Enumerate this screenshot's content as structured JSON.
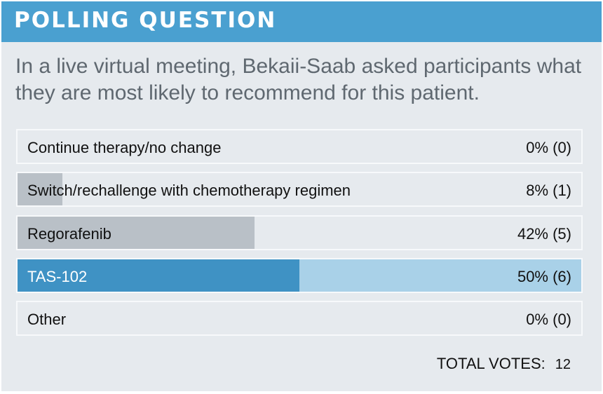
{
  "header": {
    "title": "POLLING QUESTION"
  },
  "question": "In a live virtual meeting, Bekaii-Saab asked participants what they are most likely to recommend for this patient.",
  "chart_data": {
    "type": "bar",
    "categories": [
      "Continue therapy/no change",
      "Switch/rechallenge with chemotherapy regimen",
      "Regorafenib",
      "TAS-102",
      "Other"
    ],
    "values": [
      0,
      8,
      42,
      50,
      0
    ],
    "votes": [
      0,
      1,
      5,
      6,
      0
    ],
    "value_unit": "percent",
    "highlighted": "TAS-102"
  },
  "options": [
    {
      "label": "Continue therapy/no change",
      "result": "0% (0)"
    },
    {
      "label": "Switch/rechallenge with chemotherapy regimen",
      "result": "8% (1)"
    },
    {
      "label": "Regorafenib",
      "result": "42% (5)"
    },
    {
      "label": "TAS-102",
      "result": "50% (6)"
    },
    {
      "label": "Other",
      "result": "0% (0)"
    }
  ],
  "total": {
    "label": "TOTAL VOTES:",
    "count": "12"
  },
  "colors": {
    "header": "#4aa0d0",
    "background": "#e6eaee",
    "bar_fill": "#b9c0c7",
    "selected_fill": "#3f92c4",
    "selected_track": "#a9d1e8"
  }
}
